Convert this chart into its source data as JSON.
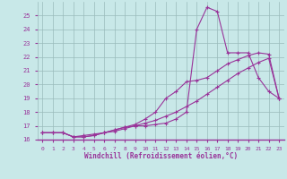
{
  "x": [
    0,
    1,
    2,
    3,
    4,
    5,
    6,
    7,
    8,
    9,
    10,
    11,
    12,
    13,
    14,
    15,
    16,
    17,
    18,
    19,
    20,
    21,
    22,
    23
  ],
  "line1": [
    16.5,
    16.5,
    16.5,
    16.2,
    16.2,
    16.3,
    16.5,
    16.7,
    16.9,
    17.0,
    17.0,
    17.1,
    17.2,
    17.5,
    18.0,
    24.0,
    25.6,
    25.3,
    22.3,
    22.3,
    22.3,
    20.5,
    19.5,
    19.0
  ],
  "line2": [
    16.5,
    16.5,
    16.5,
    16.2,
    16.2,
    16.3,
    16.5,
    16.7,
    16.9,
    17.1,
    17.5,
    18.0,
    19.0,
    19.5,
    20.2,
    20.3,
    20.5,
    21.0,
    21.5,
    21.8,
    22.1,
    22.3,
    22.2,
    19.0
  ],
  "line3": [
    16.5,
    16.5,
    16.5,
    16.2,
    16.3,
    16.4,
    16.5,
    16.6,
    16.8,
    17.0,
    17.2,
    17.4,
    17.7,
    18.0,
    18.4,
    18.8,
    19.3,
    19.8,
    20.3,
    20.8,
    21.2,
    21.6,
    21.9,
    19.0
  ],
  "line_color": "#993399",
  "bg_color": "#c8e8e8",
  "grid_color": "#99bbbb",
  "xlabel": "Windchill (Refroidissement éolien,°C)",
  "ylim": [
    16,
    26
  ],
  "xlim": [
    -0.5,
    23.5
  ],
  "yticks": [
    16,
    17,
    18,
    19,
    20,
    21,
    22,
    23,
    24,
    25
  ],
  "xticks": [
    0,
    1,
    2,
    3,
    4,
    5,
    6,
    7,
    8,
    9,
    10,
    11,
    12,
    13,
    14,
    15,
    16,
    17,
    18,
    19,
    20,
    21,
    22,
    23
  ]
}
